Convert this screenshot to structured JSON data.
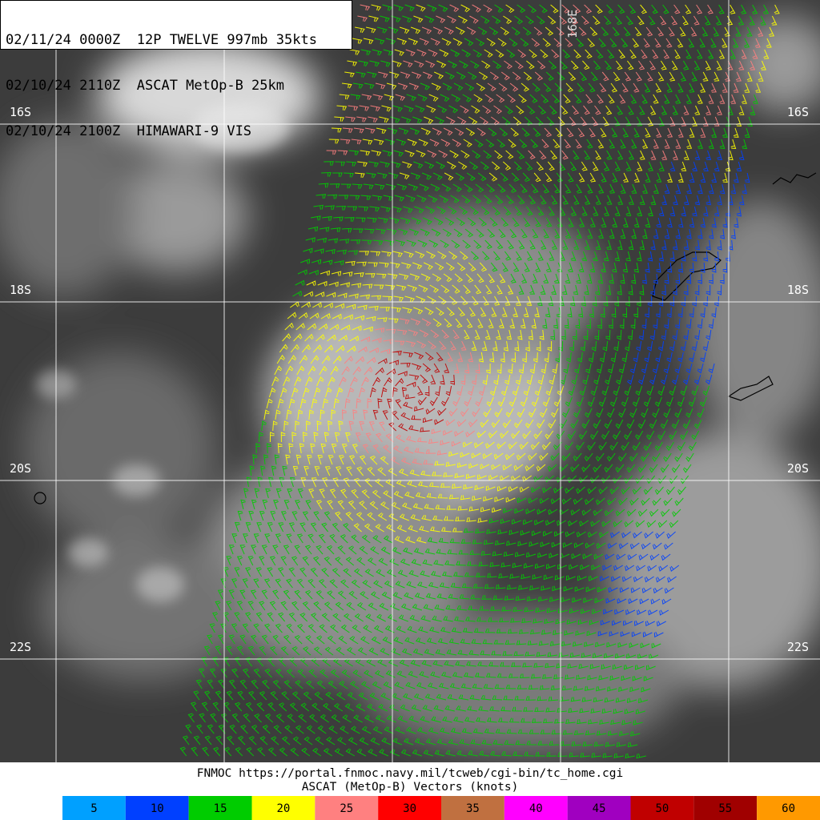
{
  "header": {
    "lines": [
      "02/11/24 0000Z  12P TWELVE 997mb 35kts",
      "02/10/24 2110Z  ASCAT MetOp-B 25km",
      "02/10/24 2100Z  HIMAWARI-9 VIS"
    ]
  },
  "map": {
    "latitude_labels": [
      "16S",
      "18S",
      "20S",
      "22S"
    ],
    "longitude_labels": [
      "168E"
    ]
  },
  "footer": {
    "credit": "FNMOC https://portal.fnmoc.navy.mil/tcweb/cgi-bin/tc_home.cgi",
    "title": "ASCAT (MetOp-B) Vectors (knots)"
  },
  "legend": {
    "items": [
      {
        "label": 5,
        "color": "#00a0ff"
      },
      {
        "label": 10,
        "color": "#0040ff"
      },
      {
        "label": 15,
        "color": "#00cc00"
      },
      {
        "label": 20,
        "color": "#ffff00"
      },
      {
        "label": 25,
        "color": "#ff8080"
      },
      {
        "label": 30,
        "color": "#ff0000"
      },
      {
        "label": 35,
        "color": "#c07040"
      },
      {
        "label": 40,
        "color": "#ff00ff"
      },
      {
        "label": 45,
        "color": "#a000c0"
      },
      {
        "label": 50,
        "color": "#c00000"
      },
      {
        "label": 55,
        "color": "#a00000"
      },
      {
        "label": 60,
        "color": "#ff9900"
      }
    ]
  }
}
